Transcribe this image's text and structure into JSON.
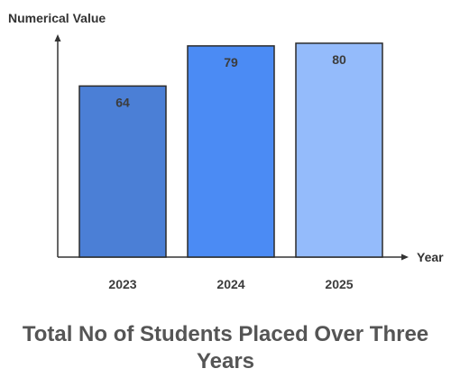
{
  "chart_data": {
    "type": "bar",
    "title": "Total No of Students Placed Over Three Years",
    "ylabel": "Numerical Value",
    "xlabel": "Year",
    "categories": [
      "2023",
      "2024",
      "2025"
    ],
    "values": [
      64,
      79,
      80
    ],
    "value_labels": [
      "64",
      "79",
      "80"
    ],
    "bar_colors": [
      "#4b7fd6",
      "#4b8bf4",
      "#94bbfb"
    ],
    "ylim": [
      0,
      82
    ],
    "grid": false,
    "legend": "none"
  }
}
